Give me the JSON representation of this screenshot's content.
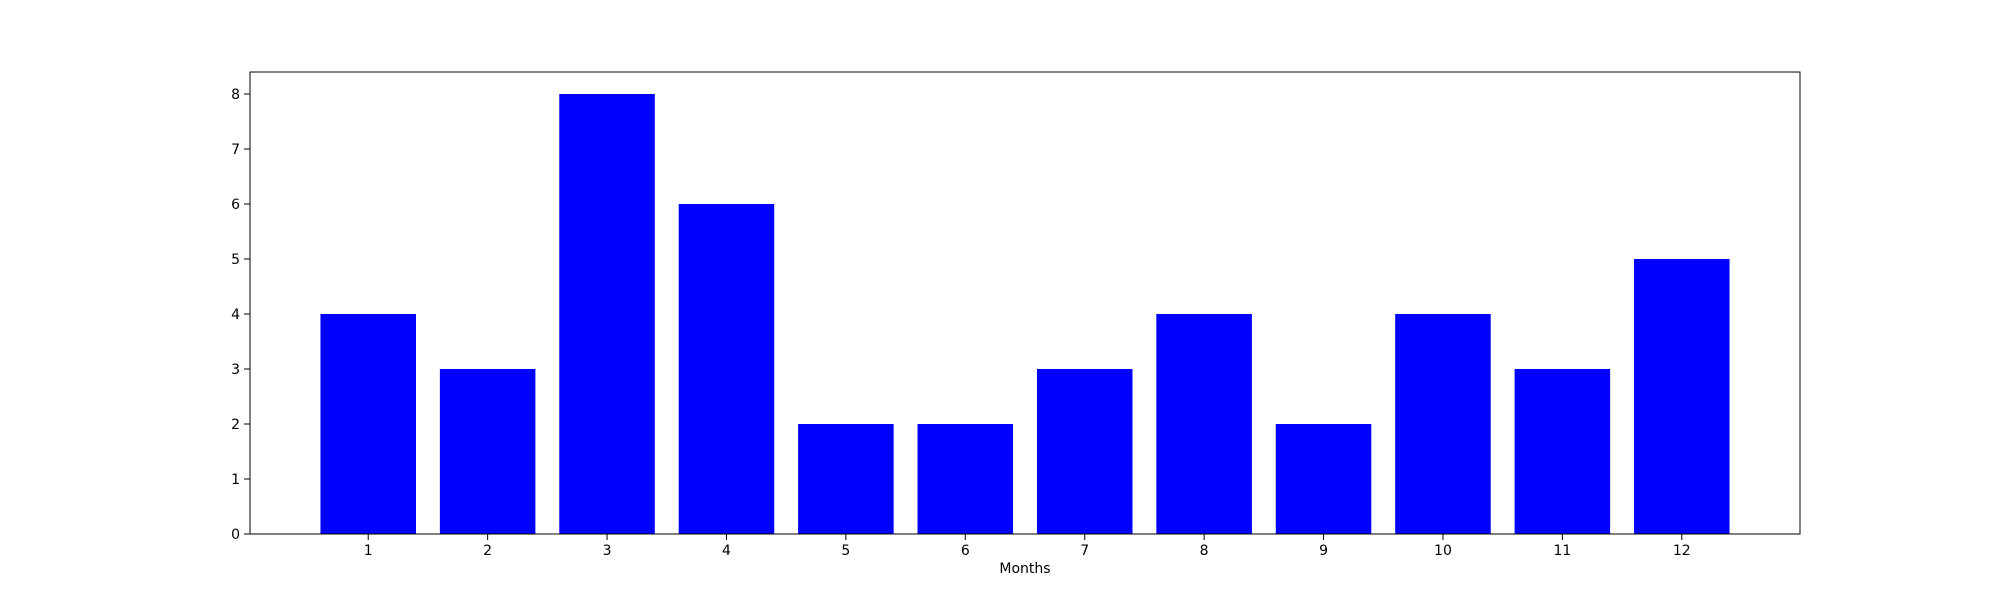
{
  "chart_data": {
    "type": "bar",
    "categories": [
      "1",
      "2",
      "3",
      "4",
      "5",
      "6",
      "7",
      "8",
      "9",
      "10",
      "11",
      "12"
    ],
    "values": [
      4,
      3,
      8,
      6,
      2,
      2,
      3,
      4,
      2,
      4,
      3,
      5
    ],
    "xlabel": "Months",
    "ylabel": "",
    "ylim": [
      0,
      8.4
    ],
    "yticks": [
      0,
      1,
      2,
      3,
      4,
      5,
      6,
      7,
      8
    ],
    "bar_color": "#0000ff",
    "grid": false,
    "legend": "none"
  }
}
